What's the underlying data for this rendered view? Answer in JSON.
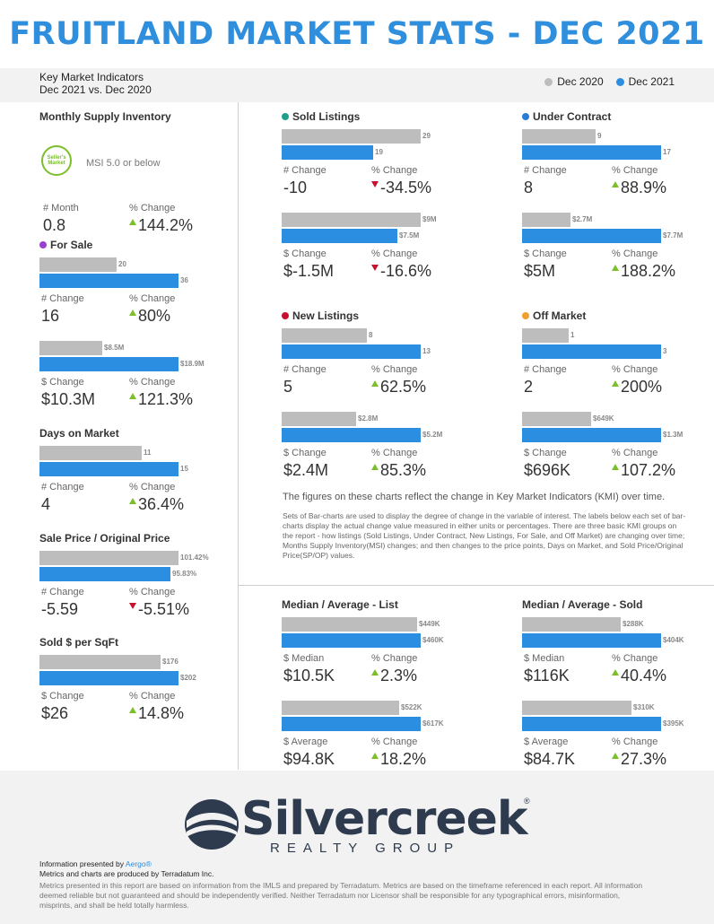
{
  "header": {
    "title": "FRUITLAND MARKET STATS - DEC 2021",
    "subtitle_1": "Key Market Indicators",
    "subtitle_2": "Dec 2021 vs. Dec 2020",
    "legend_prev": "Dec 2020",
    "legend_curr": "Dec 2021"
  },
  "colors": {
    "accent": "#2f8fdc",
    "prev": "#bdbdbd",
    "curr": "#2b8ee0",
    "up": "#7bbf2a",
    "down": "#c8102e"
  },
  "msi": {
    "title": "Monthly Supply Inventory",
    "badge_line1": "Seller's",
    "badge_line2": "Market",
    "note": "MSI 5.0 or below",
    "label_a": "# Month",
    "value_a": "0.8",
    "label_b": "% Change",
    "value_b": "144.2%"
  },
  "cards": {
    "for_sale": {
      "title": "For Sale",
      "dot": "#9b3fcf",
      "units": {
        "prev_label": "20",
        "curr_label": "36",
        "prev": 20,
        "curr": 36,
        "change_label": "# Change",
        "change": "16",
        "pct_label": "% Change",
        "pct": "80%",
        "dir": "up"
      },
      "dollars": {
        "prev_label": "$8.5M",
        "curr_label": "$18.9M",
        "prev": 8.5,
        "curr": 18.9,
        "change_label": "$ Change",
        "change": "$10.3M",
        "pct_label": "% Change",
        "pct": "121.3%",
        "dir": "up"
      }
    },
    "days": {
      "title": "Days on Market",
      "units": {
        "prev_label": "11",
        "curr_label": "15",
        "prev": 11,
        "curr": 15,
        "change_label": "# Change",
        "change": "4",
        "pct_label": "% Change",
        "pct": "36.4%",
        "dir": "up"
      }
    },
    "spop": {
      "title": "Sale Price / Original Price",
      "units": {
        "prev_label": "101.42%",
        "curr_label": "95.83%",
        "prev": 101.42,
        "curr": 95.83,
        "change_label": "# Change",
        "change": "-5.59",
        "pct_label": "% Change",
        "pct": "-5.51%",
        "dir": "down"
      }
    },
    "sqft": {
      "title": "Sold $ per SqFt",
      "units": {
        "prev_label": "$176",
        "curr_label": "$202",
        "prev": 176,
        "curr": 202,
        "change_label": "$ Change",
        "change": "$26",
        "pct_label": "% Change",
        "pct": "14.8%",
        "dir": "up"
      }
    },
    "sold": {
      "title": "Sold Listings",
      "dot": "#1f9e8c",
      "units": {
        "prev_label": "29",
        "curr_label": "19",
        "prev": 29,
        "curr": 19,
        "change_label": "# Change",
        "change": "-10",
        "pct_label": "% Change",
        "pct": "-34.5%",
        "dir": "down"
      },
      "dollars": {
        "prev_label": "$9M",
        "curr_label": "$7.5M",
        "prev": 9,
        "curr": 7.5,
        "change_label": "$ Change",
        "change": "$-1.5M",
        "pct_label": "% Change",
        "pct": "-16.6%",
        "dir": "down"
      }
    },
    "under": {
      "title": "Under Contract",
      "dot": "#2b7bd6",
      "units": {
        "prev_label": "9",
        "curr_label": "17",
        "prev": 9,
        "curr": 17,
        "change_label": "# Change",
        "change": "8",
        "pct_label": "% Change",
        "pct": "88.9%",
        "dir": "up"
      },
      "dollars": {
        "prev_label": "$2.7M",
        "curr_label": "$7.7M",
        "prev": 2.7,
        "curr": 7.7,
        "change_label": "$ Change",
        "change": "$5M",
        "pct_label": "% Change",
        "pct": "188.2%",
        "dir": "up"
      }
    },
    "newl": {
      "title": "New Listings",
      "dot": "#c8102e",
      "units": {
        "prev_label": "8",
        "curr_label": "13",
        "prev": 8,
        "curr": 13,
        "change_label": "# Change",
        "change": "5",
        "pct_label": "% Change",
        "pct": "62.5%",
        "dir": "up"
      },
      "dollars": {
        "prev_label": "$2.8M",
        "curr_label": "$5.2M",
        "prev": 2.8,
        "curr": 5.2,
        "change_label": "$ Change",
        "change": "$2.4M",
        "pct_label": "% Change",
        "pct": "85.3%",
        "dir": "up"
      }
    },
    "off": {
      "title": "Off Market",
      "dot": "#f0a030",
      "units": {
        "prev_label": "1",
        "curr_label": "3",
        "prev": 1,
        "curr": 3,
        "change_label": "# Change",
        "change": "2",
        "pct_label": "% Change",
        "pct": "200%",
        "dir": "up"
      },
      "dollars": {
        "prev_label": "$649K",
        "curr_label": "$1.3M",
        "prev": 0.649,
        "curr": 1.3,
        "change_label": "$ Change",
        "change": "$696K",
        "pct_label": "% Change",
        "pct": "107.2%",
        "dir": "up"
      }
    },
    "ma_list": {
      "title": "Median / Average - List",
      "median": {
        "prev_label": "$449K",
        "curr_label": "$460K",
        "prev": 449,
        "curr": 460,
        "change_label": "$ Median",
        "change": "$10.5K",
        "pct_label": "% Change",
        "pct": "2.3%",
        "dir": "up"
      },
      "average": {
        "prev_label": "$522K",
        "curr_label": "$617K",
        "prev": 522,
        "curr": 617,
        "change_label": "$ Average",
        "change": "$94.8K",
        "pct_label": "% Change",
        "pct": "18.2%",
        "dir": "up"
      }
    },
    "ma_sold": {
      "title": "Median / Average - Sold",
      "median": {
        "prev_label": "$288K",
        "curr_label": "$404K",
        "prev": 288,
        "curr": 404,
        "change_label": "$ Median",
        "change": "$116K",
        "pct_label": "% Change",
        "pct": "40.4%",
        "dir": "up"
      },
      "average": {
        "prev_label": "$310K",
        "curr_label": "$395K",
        "prev": 310,
        "curr": 395,
        "change_label": "$ Average",
        "change": "$84.7K",
        "pct_label": "% Change",
        "pct": "27.3%",
        "dir": "up"
      }
    }
  },
  "notes": {
    "headline": "The figures on these charts reflect the change in Key Market Indicators (KMI) over time.",
    "body": "Sets of Bar-charts are used to display the degree of change in the variable of interest. The labels below each set of bar-charts display the actual change value measured in either units or percentages. There are three basic KMI groups on the report - how listings (Sold Listings, Under Contract, New Listings, For Sale, and Off Market) are changing over time; Months Supply Inventory(MSI) changes; and then changes to the price points, Days on Market, and Sold Price/Original Price(SP/OP) values."
  },
  "footer": {
    "brand": "Silvercreek",
    "reg": "®",
    "brand_sub": "REALTY GROUP",
    "presented_prefix": "Information presented by ",
    "presented_link": "Aergo®",
    "produced": "Metrics and charts are produced by Terradatum Inc.",
    "disclaimer": "Metrics presented in this report are based on information from the IMLS and prepared by Terradatum. Metrics are based on the timeframe referenced in each report. All information deemed reliable but not guaranteed and should be independently verified. Neither Terradatum nor Licensor shall be responsible for any typographical errors, misinformation, misprints, and shall be held totally harmless."
  },
  "chart_data": [
    {
      "type": "bar",
      "title": "For Sale",
      "categories": [
        "Dec 2020",
        "Dec 2021"
      ],
      "values": [
        20,
        36
      ]
    },
    {
      "type": "bar",
      "title": "For Sale",
      "categories": [
        "Dec 2020",
        "Dec 2021"
      ],
      "values": [
        8.5,
        18.9
      ]
    },
    {
      "type": "bar",
      "title": "Days on Market",
      "categories": [
        "Dec 2020",
        "Dec 2021"
      ],
      "values": [
        11,
        15
      ]
    },
    {
      "type": "bar",
      "title": "Sale Price / Original Price",
      "categories": [
        "Dec 2020",
        "Dec 2021"
      ],
      "values": [
        101.42,
        95.83
      ]
    },
    {
      "type": "bar",
      "title": "Sold $ per SqFt",
      "categories": [
        "Dec 2020",
        "Dec 2021"
      ],
      "values": [
        176,
        202
      ]
    },
    {
      "type": "bar",
      "title": "Sold Listings",
      "categories": [
        "Dec 2020",
        "Dec 2021"
      ],
      "values": [
        29,
        19
      ]
    },
    {
      "type": "bar",
      "title": "Sold Listings",
      "categories": [
        "Dec 2020",
        "Dec 2021"
      ],
      "values": [
        9,
        7.5
      ]
    },
    {
      "type": "bar",
      "title": "Under Contract",
      "categories": [
        "Dec 2020",
        "Dec 2021"
      ],
      "values": [
        9,
        17
      ]
    },
    {
      "type": "bar",
      "title": "Under Contract",
      "categories": [
        "Dec 2020",
        "Dec 2021"
      ],
      "values": [
        2.7,
        7.7
      ]
    },
    {
      "type": "bar",
      "title": "New Listings",
      "categories": [
        "Dec 2020",
        "Dec 2021"
      ],
      "values": [
        8,
        13
      ]
    },
    {
      "type": "bar",
      "title": "New Listings",
      "categories": [
        "Dec 2020",
        "Dec 2021"
      ],
      "values": [
        2.8,
        5.2
      ]
    },
    {
      "type": "bar",
      "title": "Off Market",
      "categories": [
        "Dec 2020",
        "Dec 2021"
      ],
      "values": [
        1,
        3
      ]
    },
    {
      "type": "bar",
      "title": "Off Market",
      "categories": [
        "Dec 2020",
        "Dec 2021"
      ],
      "values": [
        0.649,
        1.3
      ]
    },
    {
      "type": "bar",
      "title": "Median / Average - List",
      "categories": [
        "Dec 2020",
        "Dec 2021"
      ],
      "values": [
        449,
        460
      ]
    },
    {
      "type": "bar",
      "title": "Median / Average - List",
      "categories": [
        "Dec 2020",
        "Dec 2021"
      ],
      "values": [
        522,
        617
      ]
    },
    {
      "type": "bar",
      "title": "Median / Average - Sold",
      "categories": [
        "Dec 2020",
        "Dec 2021"
      ],
      "values": [
        288,
        404
      ]
    },
    {
      "type": "bar",
      "title": "Median / Average - Sold",
      "categories": [
        "Dec 2020",
        "Dec 2021"
      ],
      "values": [
        310,
        395
      ]
    }
  ]
}
